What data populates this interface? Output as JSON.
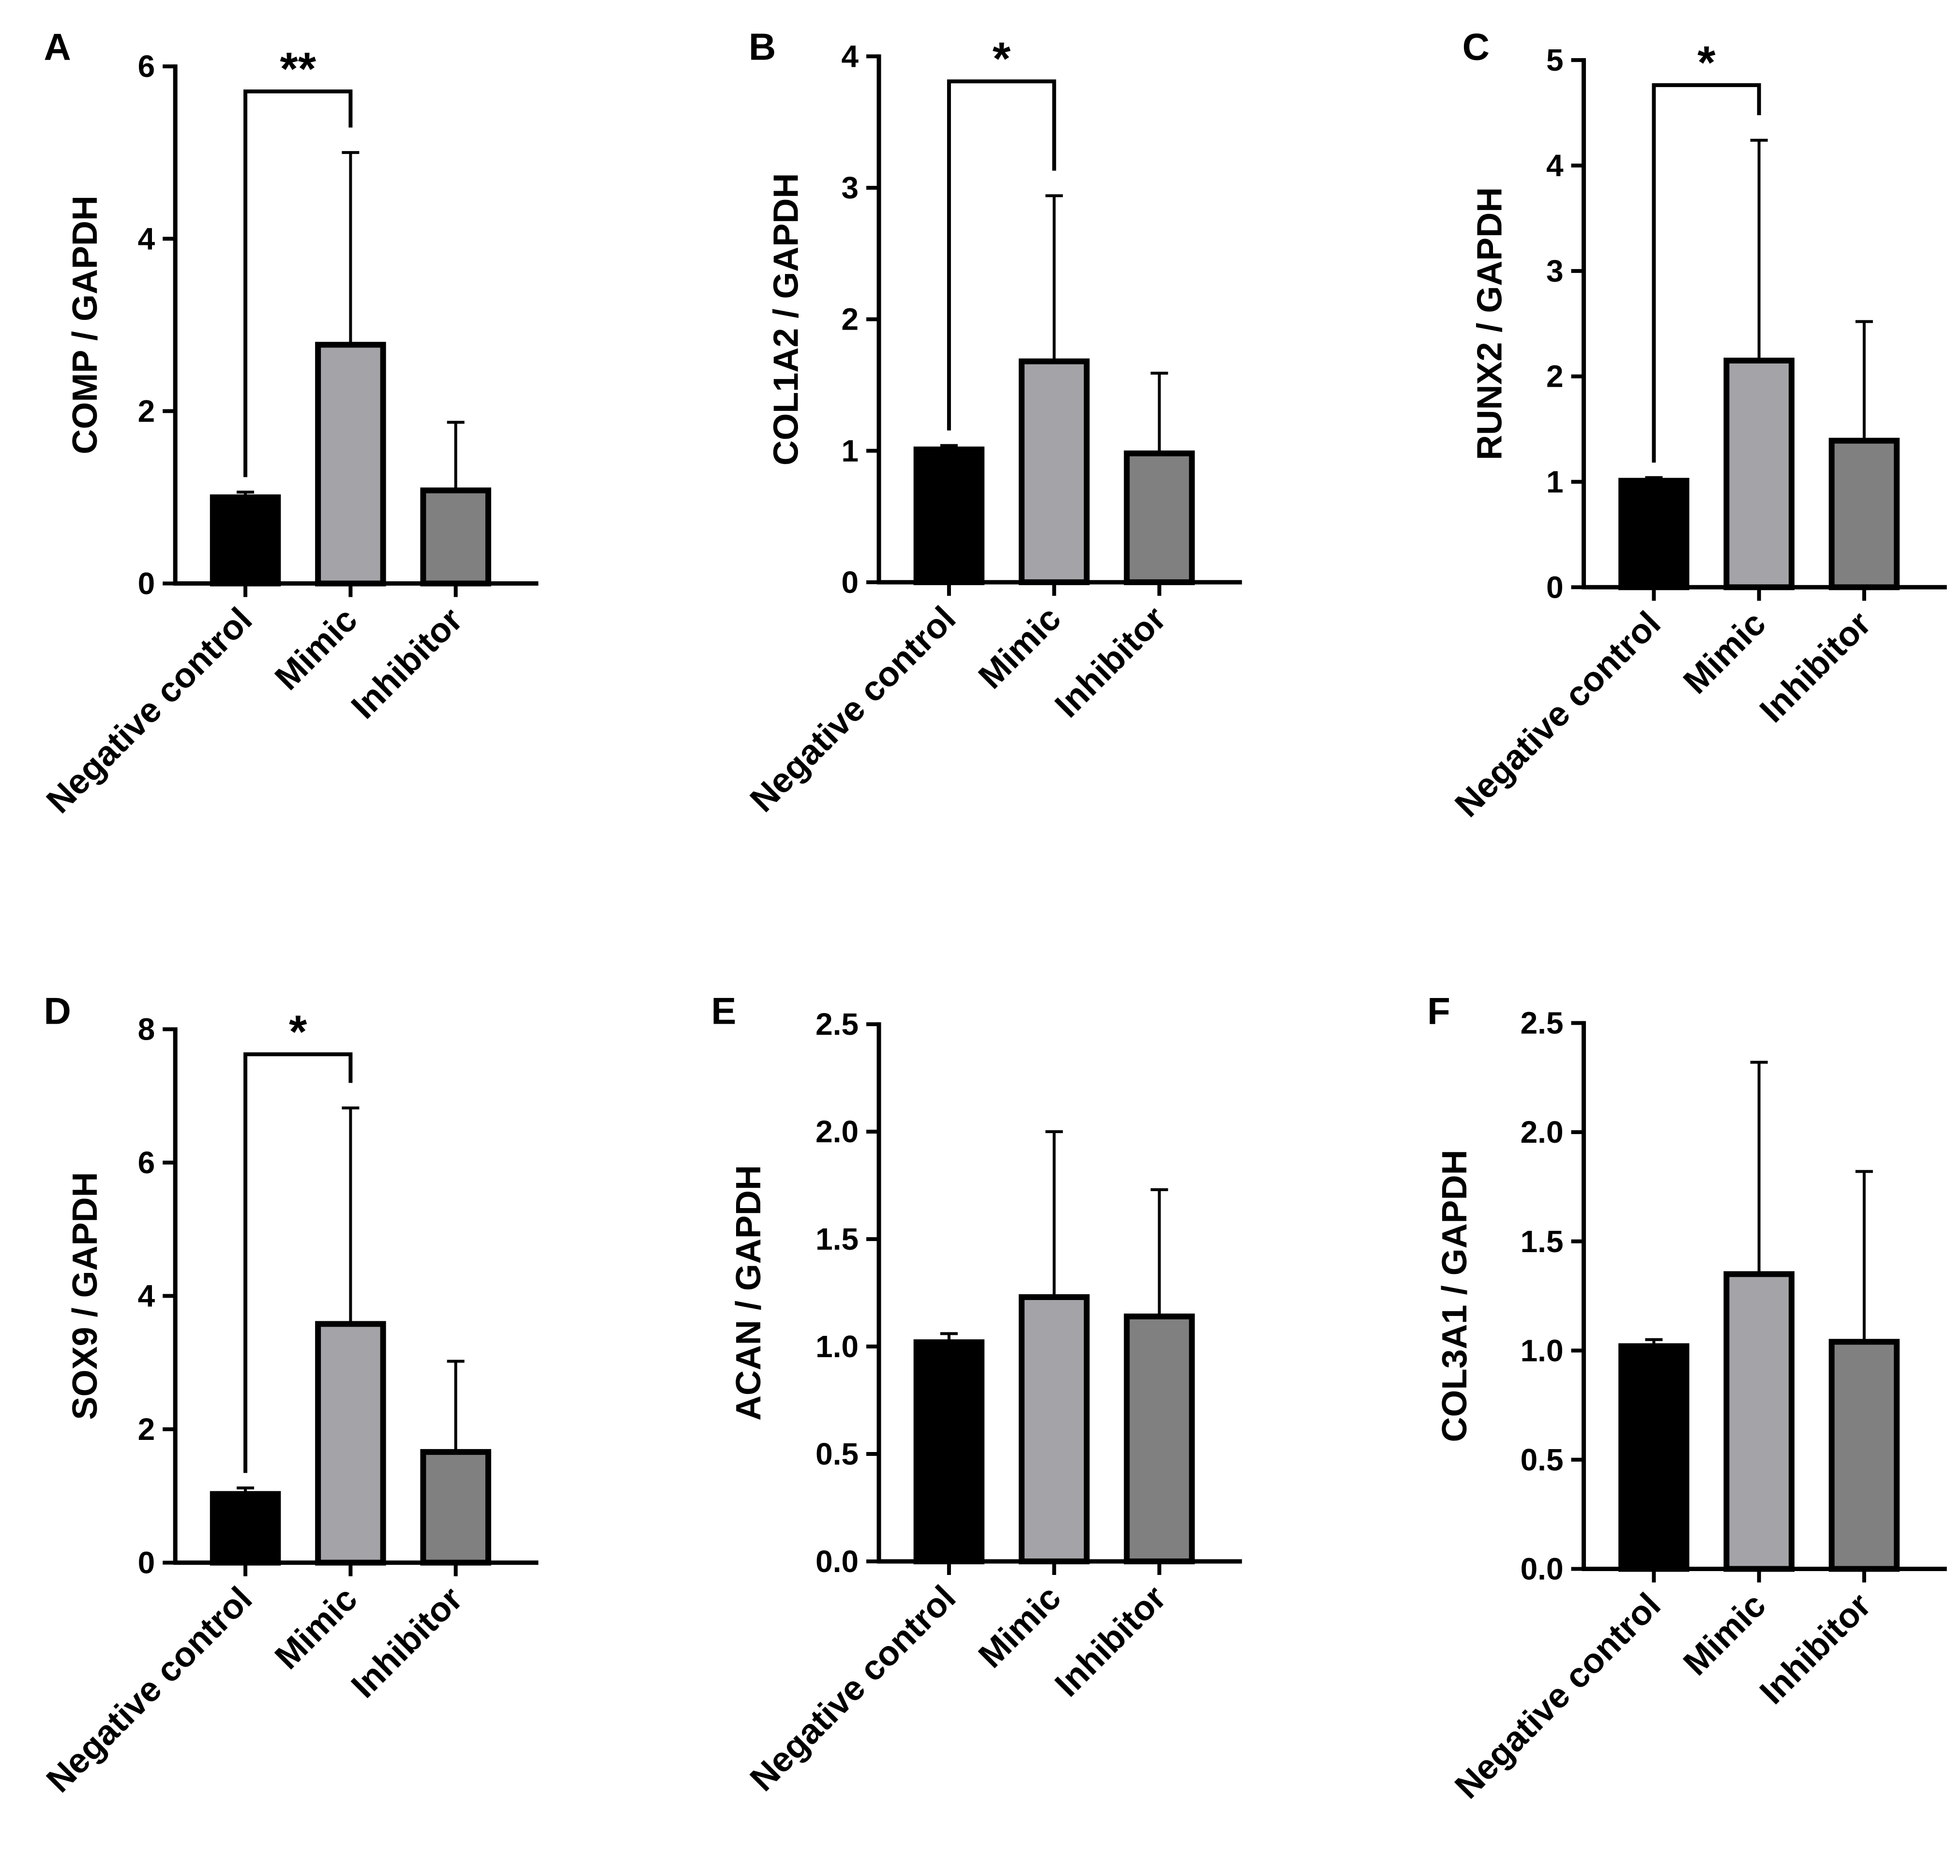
{
  "chart_data": [
    {
      "panel": "A",
      "type": "bar",
      "categories": [
        "Negative control",
        "Mimic",
        "Inhibitor"
      ],
      "values": [
        1.0,
        2.77,
        1.08
      ],
      "errors": [
        0.06,
        2.23,
        0.79
      ],
      "ylabel": "COMP / GAPDH",
      "xlabel": "",
      "ylim": [
        0,
        6
      ],
      "yticks": [
        "0",
        "2",
        "4",
        "6"
      ],
      "significance": {
        "from": 0,
        "to": 1,
        "label": "**"
      },
      "colors": [
        "#000000",
        "#a3a3a8",
        "#808080"
      ]
    },
    {
      "panel": "B",
      "type": "bar",
      "categories": [
        "Negative control",
        "Mimic",
        "Inhibitor"
      ],
      "values": [
        1.01,
        1.68,
        0.98
      ],
      "errors": [
        0.03,
        1.26,
        0.61
      ],
      "ylabel": "COL1A2 / GAPDH",
      "xlabel": "",
      "ylim": [
        0,
        4
      ],
      "yticks": [
        "0",
        "1",
        "2",
        "3",
        "4"
      ],
      "significance": {
        "from": 0,
        "to": 1,
        "label": "*"
      },
      "colors": [
        "#000000",
        "#a3a3a8",
        "#808080"
      ]
    },
    {
      "panel": "C",
      "type": "bar",
      "categories": [
        "Negative control",
        "Mimic",
        "Inhibitor"
      ],
      "values": [
        1.01,
        2.15,
        1.39
      ],
      "errors": [
        0.03,
        2.09,
        1.13
      ],
      "ylabel": "RUNX2 / GAPDH",
      "xlabel": "",
      "ylim": [
        0,
        5
      ],
      "yticks": [
        "0",
        "1",
        "2",
        "3",
        "4",
        "5"
      ],
      "significance": {
        "from": 0,
        "to": 1,
        "label": "*"
      },
      "colors": [
        "#000000",
        "#a3a3a8",
        "#808080"
      ]
    },
    {
      "panel": "D",
      "type": "bar",
      "categories": [
        "Negative control",
        "Mimic",
        "Inhibitor"
      ],
      "values": [
        1.03,
        3.58,
        1.66
      ],
      "errors": [
        0.09,
        3.24,
        1.36
      ],
      "ylabel": "SOX9 / GAPDH",
      "xlabel": "",
      "ylim": [
        0,
        8
      ],
      "yticks": [
        "0",
        "2",
        "4",
        "6",
        "8"
      ],
      "significance": {
        "from": 0,
        "to": 1,
        "label": "*"
      },
      "colors": [
        "#000000",
        "#a3a3a8",
        "#808080"
      ]
    },
    {
      "panel": "E",
      "type": "bar",
      "categories": [
        "Negative control",
        "Mimic",
        "Inhibitor"
      ],
      "values": [
        1.02,
        1.23,
        1.14
      ],
      "errors": [
        0.04,
        0.77,
        0.59
      ],
      "ylabel": "ACAN / GAPDH",
      "xlabel": "",
      "ylim": [
        0,
        2.5
      ],
      "yticks": [
        "0.0",
        "0.5",
        "1.0",
        "1.5",
        "2.0",
        "2.5"
      ],
      "significance": null,
      "colors": [
        "#000000",
        "#a3a3a8",
        "#808080"
      ]
    },
    {
      "panel": "F",
      "type": "bar",
      "categories": [
        "Negative control",
        "Mimic",
        "Inhibitor"
      ],
      "values": [
        1.02,
        1.35,
        1.04
      ],
      "errors": [
        0.03,
        0.97,
        0.78
      ],
      "ylabel": "COL3A1 / GAPDH",
      "xlabel": "",
      "ylim": [
        0,
        2.5
      ],
      "yticks": [
        "0.0",
        "0.5",
        "1.0",
        "1.5",
        "2.0",
        "2.5"
      ],
      "significance": null,
      "colors": [
        "#000000",
        "#a3a3a8",
        "#808080"
      ]
    }
  ]
}
